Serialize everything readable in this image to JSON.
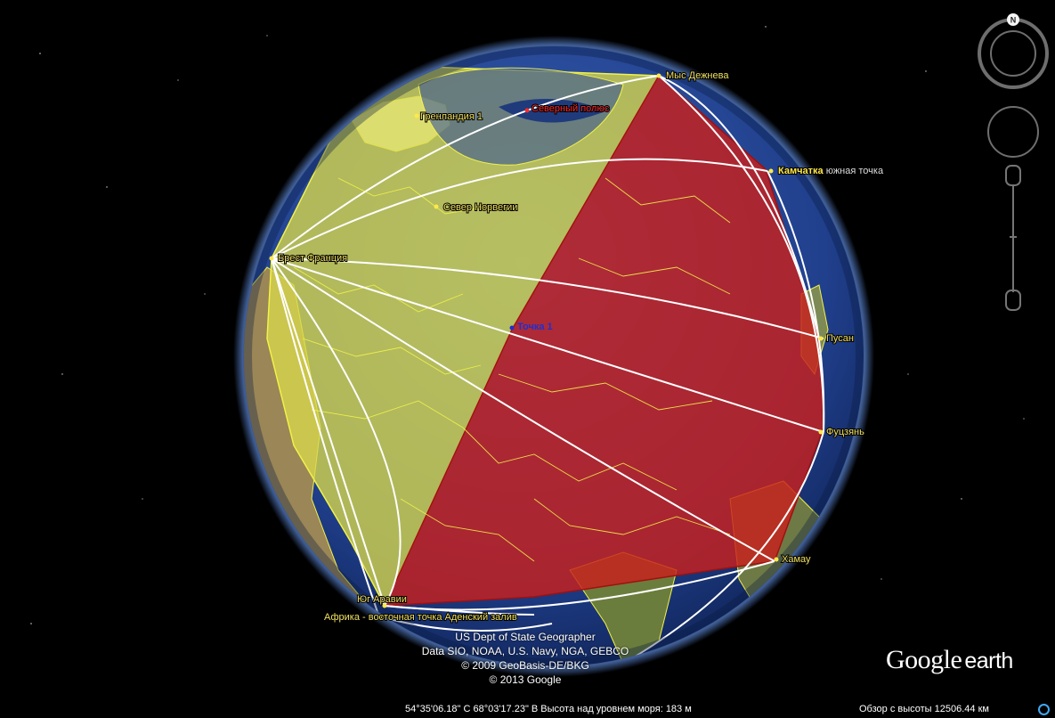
{
  "app": "Google Earth",
  "placemarks": {
    "cape_dezhnev": "Мыс Дежнева",
    "greenland": "Гренландия 1",
    "north_pole": "Северный полюс",
    "kamchatka": "Камчатка",
    "kamchatka_suffix": "южная точка",
    "north_norway": "Север Норвегии",
    "brest": "Брест Франция",
    "point1": "Точка 1",
    "busan": "Пусан",
    "fuzhou": "Фуцзянь",
    "hamau": "Хамау",
    "south_arabia": "Юг Аравии",
    "africa_east": "Африка - восточная точка Аденский залив"
  },
  "credits": [
    "US Dept of State Geographer",
    "Data SIO, NOAA, U.S. Navy, NGA, GEBCO",
    "© 2009 GeoBasis-DE/BKG",
    "© 2013 Google"
  ],
  "status": {
    "coords": "54°35'06.18\" С  68°03'17.23\" В  Высота над уровнем моря:   183 м",
    "eye_alt": "Обзор с высоты 12506.44 км"
  },
  "logo": {
    "google": "Google",
    "earth": "earth"
  },
  "compass": {
    "north_label": "N"
  },
  "colors": {
    "ocean": "#1f3f8a",
    "land": "#8a7a4a",
    "yellow_polygon": "#d8d84a",
    "red_polygon": "#c8201c",
    "borders": "#f2f24a",
    "lines": "#ffffff"
  }
}
